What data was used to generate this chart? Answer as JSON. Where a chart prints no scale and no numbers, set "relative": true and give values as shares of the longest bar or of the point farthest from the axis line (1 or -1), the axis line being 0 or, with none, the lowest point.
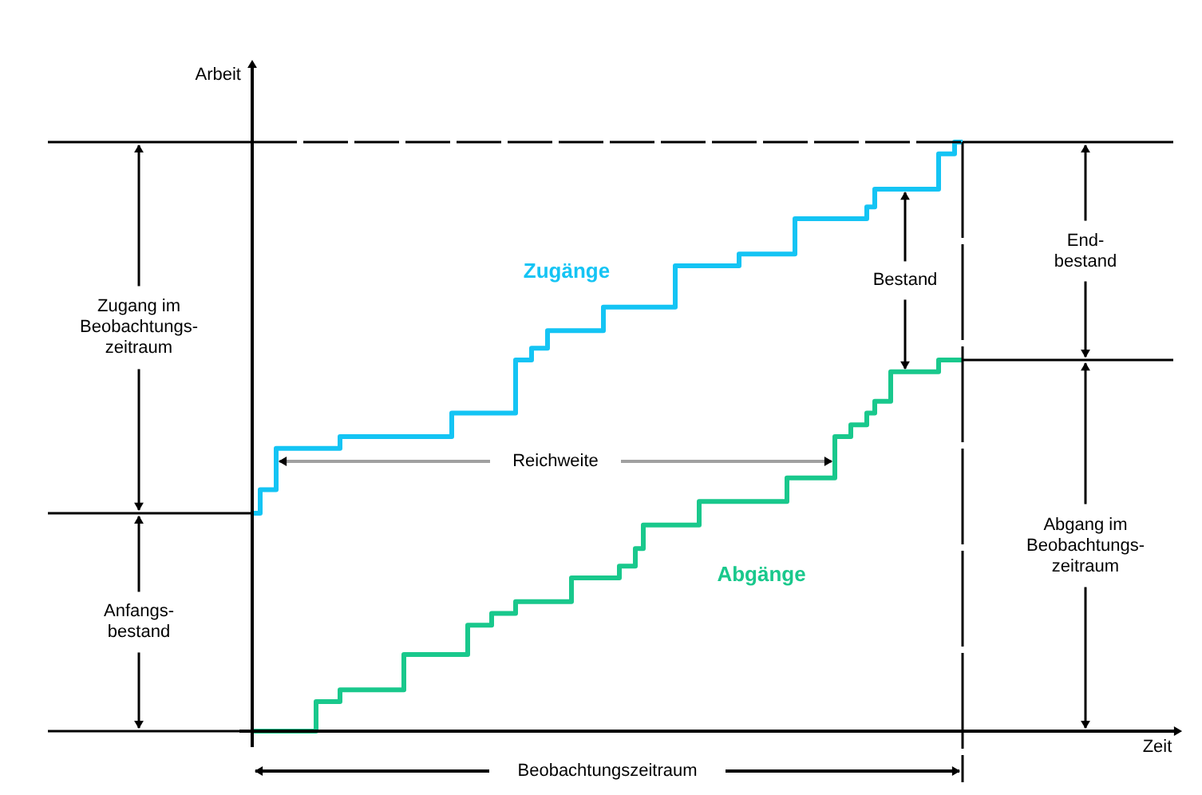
{
  "chart_data": {
    "type": "step",
    "relative": true,
    "ylabel": "Arbeit",
    "tick_labels": false,
    "categories": [
      null,
      null,
      null,
      null,
      null,
      null,
      null,
      null,
      null,
      null,
      null,
      null,
      null,
      null,
      null,
      null,
      null,
      null,
      null,
      null,
      null,
      null,
      null,
      null,
      null,
      null,
      null,
      null,
      null,
      null,
      null,
      null,
      null,
      null,
      null,
      null,
      null,
      null,
      null,
      null,
      null,
      null,
      null,
      null,
      null,
      null,
      null,
      null,
      null,
      null,
      null,
      null,
      null,
      null,
      null,
      null,
      null,
      null,
      null,
      null,
      null,
      null,
      null,
      null,
      null,
      null,
      null,
      null,
      null,
      null,
      null,
      null,
      null,
      null,
      null,
      null,
      null,
      null,
      null,
      null,
      null,
      null,
      null,
      null,
      null,
      null,
      null,
      null,
      null,
      null
    ],
    "series": [
      {
        "name": "Zugänge",
        "color": "#14c4f4",
        "values": [
          0.37,
          0.41,
          0.41,
          0.48,
          0.48,
          0.48,
          0.48,
          0.48,
          0.48,
          0.48,
          0.48,
          0.5,
          0.5,
          0.5,
          0.5,
          0.5,
          0.5,
          0.5,
          0.5,
          0.5,
          0.5,
          0.5,
          0.5,
          0.5,
          0.5,
          0.54,
          0.54,
          0.54,
          0.54,
          0.54,
          0.54,
          0.54,
          0.54,
          0.63,
          0.63,
          0.65,
          0.65,
          0.68,
          0.68,
          0.68,
          0.68,
          0.68,
          0.68,
          0.68,
          0.72,
          0.72,
          0.72,
          0.72,
          0.72,
          0.72,
          0.72,
          0.72,
          0.72,
          0.79,
          0.79,
          0.79,
          0.79,
          0.79,
          0.79,
          0.79,
          0.79,
          0.81,
          0.81,
          0.81,
          0.81,
          0.81,
          0.81,
          0.81,
          0.87,
          0.87,
          0.87,
          0.87,
          0.87,
          0.87,
          0.87,
          0.87,
          0.87,
          0.89,
          0.92,
          0.92,
          0.92,
          0.92,
          0.92,
          0.92,
          0.92,
          0.92,
          0.98,
          0.98,
          1,
          1
        ]
      },
      {
        "name": "Abgänge",
        "color": "#19c88c",
        "values": [
          0,
          0,
          0,
          0,
          0,
          0,
          0,
          0,
          0.05,
          0.05,
          0.05,
          0.07,
          0.07,
          0.07,
          0.07,
          0.07,
          0.07,
          0.07,
          0.07,
          0.13,
          0.13,
          0.13,
          0.13,
          0.13,
          0.13,
          0.13,
          0.13,
          0.18,
          0.18,
          0.18,
          0.2,
          0.2,
          0.2,
          0.22,
          0.22,
          0.22,
          0.22,
          0.22,
          0.22,
          0.22,
          0.26,
          0.26,
          0.26,
          0.26,
          0.26,
          0.26,
          0.28,
          0.28,
          0.31,
          0.35,
          0.35,
          0.35,
          0.35,
          0.35,
          0.35,
          0.35,
          0.39,
          0.39,
          0.39,
          0.39,
          0.39,
          0.39,
          0.39,
          0.39,
          0.39,
          0.39,
          0.39,
          0.43,
          0.43,
          0.43,
          0.43,
          0.43,
          0.43,
          0.5,
          0.5,
          0.52,
          0.52,
          0.54,
          0.56,
          0.56,
          0.61,
          0.61,
          0.61,
          0.61,
          0.61,
          0.61,
          0.63,
          0.63,
          0.63,
          0.63
        ]
      }
    ],
    "annotations": [
      "Zugang im\nBeobachtungs-\nzeitraum",
      "Anfangs-\nbestand",
      "Bestand",
      "End-\nbestand",
      "Abgang im\nBeobachtungs-\nzeitraum",
      "Reichweite",
      "Beobachtungszeitraum",
      "Zeit"
    ]
  }
}
